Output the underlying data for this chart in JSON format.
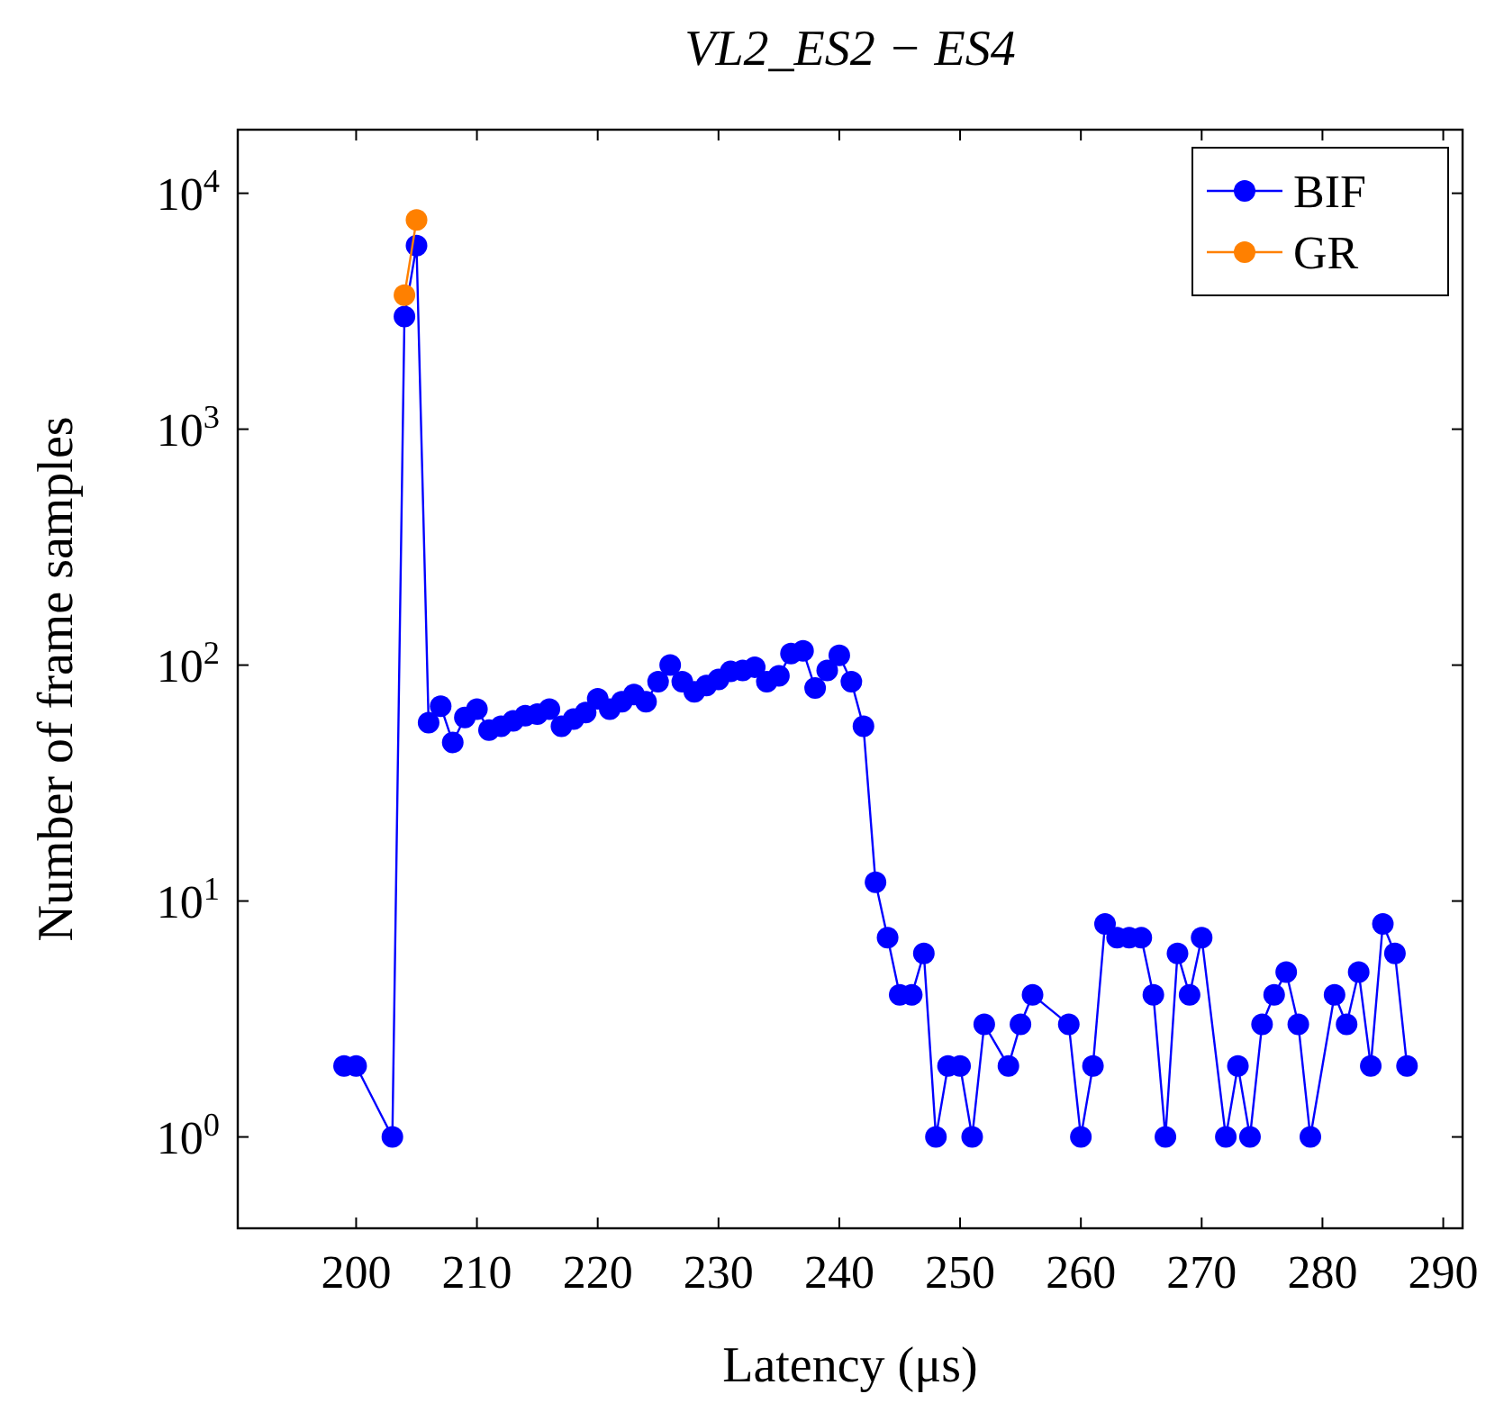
{
  "chart_data": {
    "type": "line",
    "title": "VL2_ES2 − ES4",
    "xlabel": "Latency (μs)",
    "ylabel": "Number of frame samples",
    "log": "y",
    "marker": "circle",
    "line_style": "solid",
    "legend": "top right",
    "grid": false,
    "xlim": [
      190.2,
      291.6
    ],
    "xticks": [
      200,
      210,
      220,
      230,
      240,
      250,
      260,
      270,
      280,
      290
    ],
    "ylim": [
      0.41,
      18600
    ],
    "yticks": [
      {
        "value": 1,
        "label": "10$^{0}$"
      },
      {
        "value": 10,
        "label": "10$^{1}$"
      },
      {
        "value": 100,
        "label": "10$^{2}$"
      },
      {
        "value": 1000,
        "label": "10$^{3}$"
      },
      {
        "value": 10000,
        "label": "10$^{4}$"
      }
    ],
    "series": [
      {
        "name": "BIF",
        "color": "#0000ff",
        "x": [
          199,
          200,
          203,
          204,
          205,
          206,
          207,
          208,
          209,
          210,
          211,
          212,
          213,
          214,
          215,
          216,
          217,
          218,
          219,
          220,
          221,
          222,
          223,
          224,
          225,
          226,
          227,
          228,
          229,
          230,
          231,
          232,
          233,
          234,
          235,
          236,
          237,
          238,
          239,
          240,
          241,
          242,
          243,
          244,
          245,
          246,
          247,
          248,
          249,
          250,
          251,
          252,
          254,
          255,
          256,
          259,
          260,
          261,
          262,
          263,
          264,
          265,
          266,
          267,
          268,
          269,
          270,
          272,
          273,
          274,
          275,
          276,
          277,
          278,
          279,
          281,
          282,
          283,
          284,
          285,
          286,
          287
        ],
        "values": [
          2,
          2,
          1,
          3000,
          6000,
          57,
          67,
          47,
          60,
          65,
          53,
          55,
          58,
          61,
          62,
          65,
          55,
          59,
          63,
          72,
          65,
          70,
          75,
          70,
          85,
          100,
          85,
          77,
          82,
          87,
          94,
          95,
          98,
          85,
          90,
          112,
          115,
          80,
          95,
          110,
          85,
          55,
          12,
          7,
          4,
          4,
          6,
          1,
          2,
          2,
          1,
          3,
          2,
          3,
          4,
          3,
          1,
          2,
          8,
          7,
          7,
          7,
          4,
          1,
          6,
          4,
          7,
          1,
          2,
          1,
          3,
          4,
          5,
          3,
          1,
          4,
          3,
          5,
          2,
          8,
          6,
          2
        ]
      },
      {
        "name": "GR",
        "color": "#ff8000",
        "x": [
          204,
          205
        ],
        "values": [
          3700,
          7700
        ]
      }
    ]
  }
}
